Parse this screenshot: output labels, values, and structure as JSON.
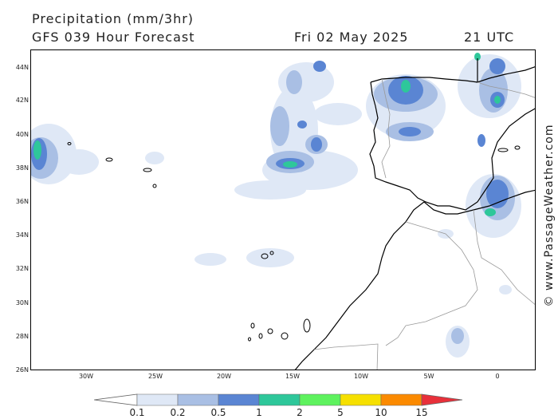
{
  "header": {
    "title": "Precipitation (mm/3hr)",
    "forecast": "GFS 039 Hour Forecast",
    "date": "Fri 02 May 2025",
    "time": "21 UTC"
  },
  "credit": "© www.PassageWeather.com",
  "latitude_labels": [
    "44N",
    "42N",
    "40N",
    "38N",
    "36N",
    "34N",
    "32N",
    "30N",
    "28N",
    "26N"
  ],
  "longitude_labels": [
    "30W",
    "25W",
    "20W",
    "15W",
    "10W",
    "5W",
    "0"
  ],
  "legend": {
    "labels": [
      "0.1",
      "0.2",
      "0.5",
      "1",
      "2",
      "5",
      "10",
      "15"
    ],
    "colors": [
      "#ffffff",
      "#dfe8f6",
      "#a9bfe4",
      "#5a85d3",
      "#2ec79a",
      "#5ef25e",
      "#f6e000",
      "#fb8a00",
      "#e8303a"
    ]
  },
  "colors": {
    "coast": "#000000",
    "border": "#999999",
    "light_rain": "#dfe8f6",
    "moderate_rain": "#a9bfe4",
    "heavy_rain": "#5a85d3"
  }
}
